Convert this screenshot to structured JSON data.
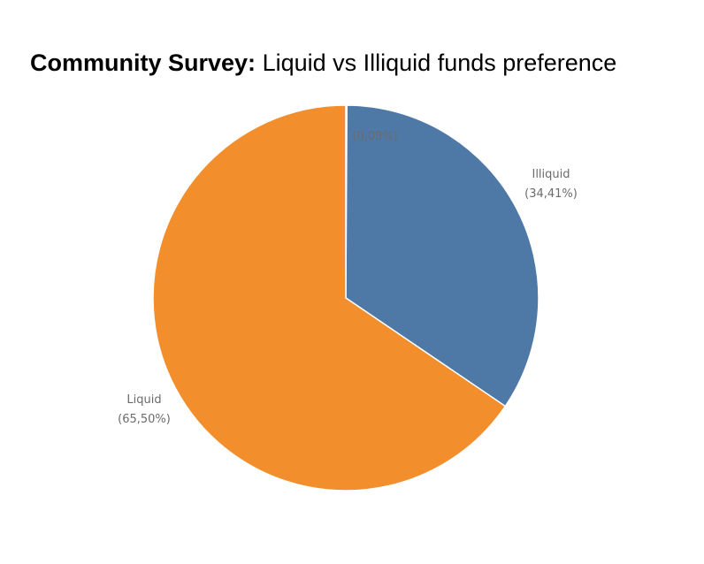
{
  "title": {
    "bold": "Community Survey:",
    "rest": "Liquid vs Illiquid funds preference"
  },
  "chart_data": {
    "type": "pie",
    "title": "Community Survey: Liquid vs Illiquid funds preference",
    "slices": [
      {
        "label": "",
        "percent_text": "(0,09%)",
        "value": 0.09,
        "color": "#ffffff"
      },
      {
        "label": "Illiquid",
        "percent_text": "(34,41%)",
        "value": 34.41,
        "color": "#4e79a7"
      },
      {
        "label": "Liquid",
        "percent_text": "(65,50%)",
        "value": 65.5,
        "color": "#f28e2b"
      }
    ],
    "start": "12 o'clock",
    "direction": "clockwise",
    "legend": "none"
  }
}
